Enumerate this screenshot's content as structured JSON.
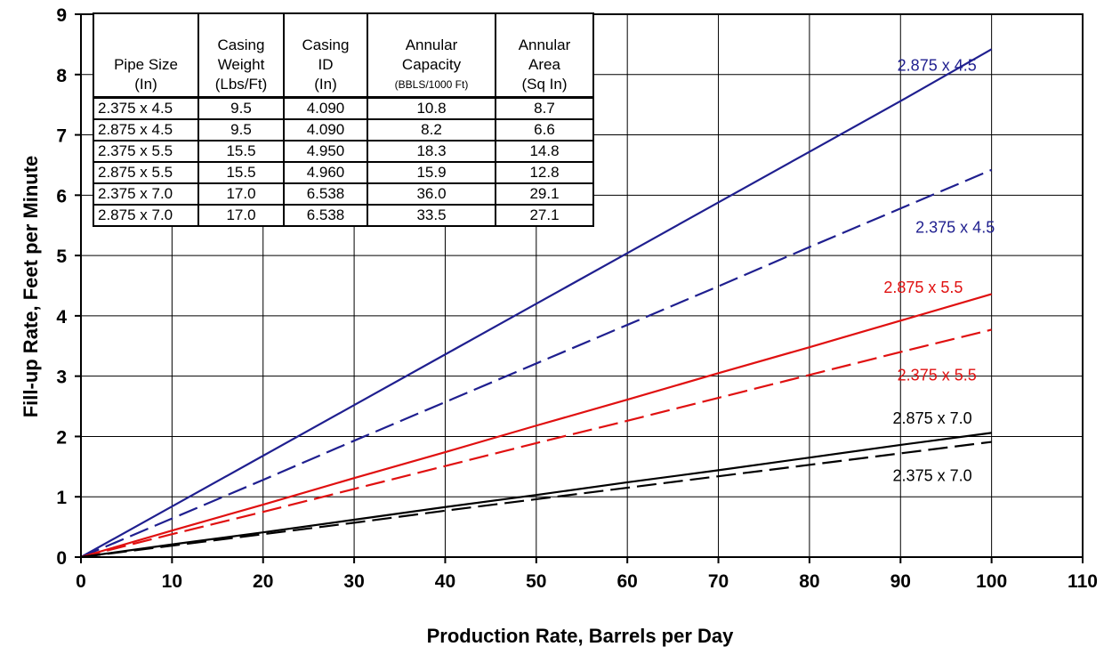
{
  "chart_data": {
    "type": "line",
    "xlabel": "Production Rate, Barrels per Day",
    "ylabel": "Fill-up Rate, Feet per Minute",
    "xlim": [
      0,
      110
    ],
    "ylim": [
      0,
      9
    ],
    "xticks": [
      "0",
      "10",
      "20",
      "30",
      "40",
      "50",
      "60",
      "70",
      "80",
      "90",
      "100",
      "110"
    ],
    "yticks": [
      "0",
      "1",
      "2",
      "3",
      "4",
      "5",
      "6",
      "7",
      "8",
      "9"
    ],
    "grid": true,
    "x": [
      0,
      10,
      20,
      30,
      40,
      50,
      60,
      70,
      80,
      90,
      100
    ],
    "series": [
      {
        "name": "2.875 x 4.5",
        "color": "#1f1f8f",
        "dash": "solid",
        "values": [
          0,
          0.84,
          1.68,
          2.52,
          3.36,
          4.2,
          5.04,
          5.88,
          6.72,
          7.56,
          8.42
        ]
      },
      {
        "name": "2.375 x 4.5",
        "color": "#1f1f8f",
        "dash": "dashed",
        "values": [
          0,
          0.64,
          1.28,
          1.93,
          2.57,
          3.21,
          3.85,
          4.49,
          5.14,
          5.78,
          6.42
        ]
      },
      {
        "name": "2.875 x 5.5",
        "color": "#e01010",
        "dash": "solid",
        "values": [
          0,
          0.44,
          0.87,
          1.31,
          1.74,
          2.18,
          2.61,
          3.05,
          3.48,
          3.92,
          4.36
        ]
      },
      {
        "name": "2.375 x 5.5",
        "color": "#e01010",
        "dash": "dashed",
        "values": [
          0,
          0.38,
          0.75,
          1.13,
          1.51,
          1.89,
          2.26,
          2.64,
          3.02,
          3.4,
          3.77
        ]
      },
      {
        "name": "2.875 x 7.0",
        "color": "#000000",
        "dash": "solid",
        "values": [
          0,
          0.21,
          0.41,
          0.62,
          0.83,
          1.03,
          1.24,
          1.44,
          1.65,
          1.86,
          2.06
        ]
      },
      {
        "name": "2.375 x 7.0",
        "color": "#000000",
        "dash": "dashed",
        "values": [
          0,
          0.19,
          0.38,
          0.57,
          0.77,
          0.96,
          1.15,
          1.34,
          1.53,
          1.72,
          1.91
        ]
      }
    ],
    "annotations": [
      {
        "text": "2.875 x 4.5",
        "color": "#1f1f8f",
        "x": 94,
        "y": 8.15
      },
      {
        "text": "2.375 x 4.5",
        "color": "#1f1f8f",
        "x": 96,
        "y": 5.47
      },
      {
        "text": "2.875 x 5.5",
        "color": "#e01010",
        "x": 92.5,
        "y": 4.47
      },
      {
        "text": "2.375 x 5.5",
        "color": "#e01010",
        "x": 94,
        "y": 3.02
      },
      {
        "text": "2.875 x 7.0",
        "color": "#000000",
        "x": 93.5,
        "y": 2.3
      },
      {
        "text": "2.375 x 7.0",
        "color": "#000000",
        "x": 93.5,
        "y": 1.35
      }
    ]
  },
  "table": {
    "headers": [
      [
        "Pipe Size",
        "(In)"
      ],
      [
        "Casing",
        "Weight",
        "(Lbs/Ft)"
      ],
      [
        "Casing",
        "ID",
        "(In)"
      ],
      [
        "Annular",
        "Capacity",
        "(BBLS/1000 Ft)"
      ],
      [
        "Annular",
        "Area",
        "(Sq In)"
      ]
    ],
    "rows": [
      [
        "2.375 x 4.5",
        "9.5",
        "4.090",
        "10.8",
        "8.7"
      ],
      [
        "2.875 x 4.5",
        "9.5",
        "4.090",
        "8.2",
        "6.6"
      ],
      [
        "2.375 x 5.5",
        "15.5",
        "4.950",
        "18.3",
        "14.8"
      ],
      [
        "2.875 x 5.5",
        "15.5",
        "4.960",
        "15.9",
        "12.8"
      ],
      [
        "2.375 x 7.0",
        "17.0",
        "6.538",
        "36.0",
        "29.1"
      ],
      [
        "2.875 x 7.0",
        "17.0",
        "6.538",
        "33.5",
        "27.1"
      ]
    ]
  }
}
